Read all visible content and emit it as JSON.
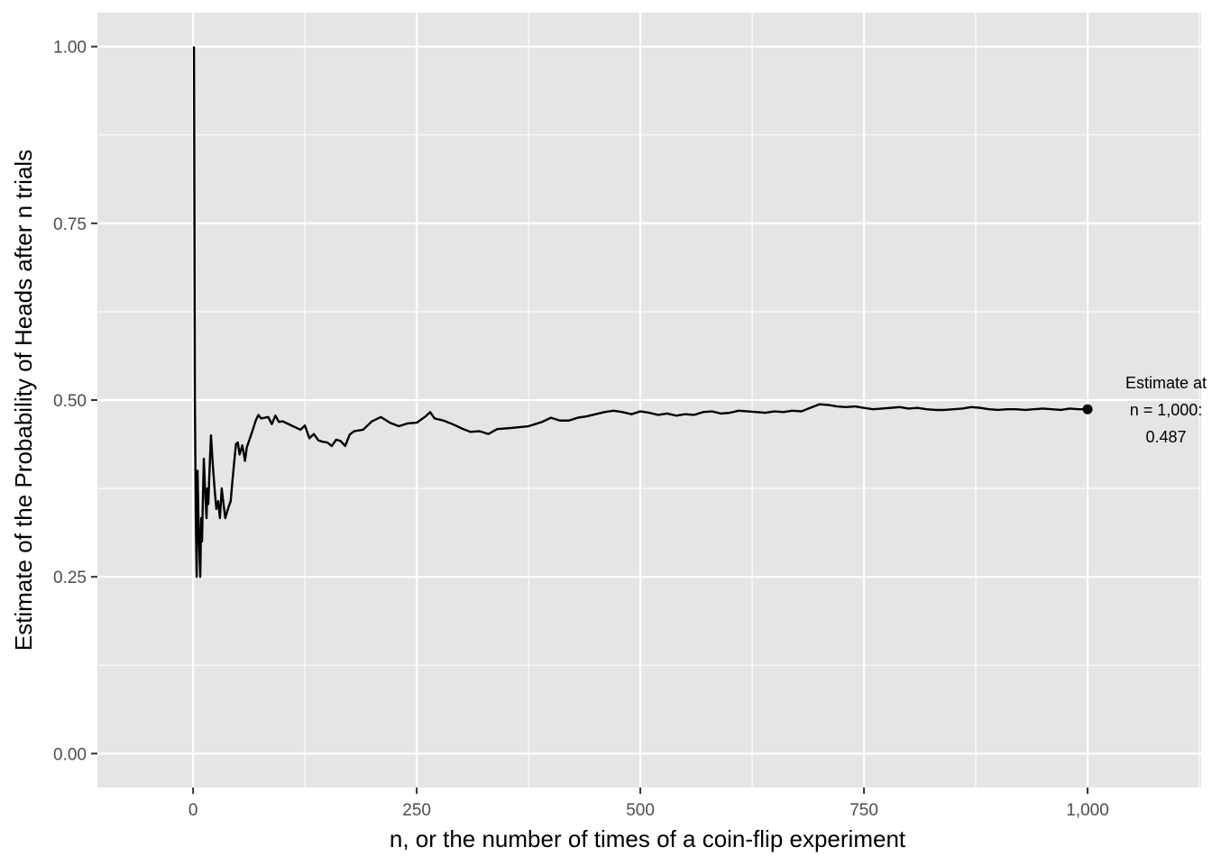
{
  "chart_data": {
    "type": "line",
    "title": "",
    "xlabel": "n, or the number of times of a coin-flip experiment",
    "ylabel": "Estimate of the Probability of Heads after n trials",
    "xlim": [
      -107,
      1127
    ],
    "ylim": [
      -0.048,
      1.048
    ],
    "x_ticks": [
      0,
      250,
      500,
      750,
      1000
    ],
    "x_tick_labels": [
      "0",
      "250",
      "500",
      "750",
      "1,000"
    ],
    "y_ticks": [
      0,
      0.25,
      0.5,
      0.75,
      1.0
    ],
    "y_tick_labels": [
      "0.00",
      "0.25",
      "0.50",
      "0.75",
      "1.00"
    ],
    "grid": true,
    "panel_background": "#e5e5e5",
    "grid_color": "#ffffff",
    "line_color": "#000000",
    "series": [
      {
        "x": [
          1,
          2,
          3,
          4,
          5,
          6,
          7,
          8,
          9,
          10,
          11,
          12,
          13,
          14,
          15,
          16,
          17,
          18,
          19,
          20,
          22,
          24,
          26,
          28,
          30,
          32,
          34,
          36,
          38,
          40,
          42,
          44,
          46,
          48,
          50,
          52,
          55,
          58,
          60,
          63,
          66,
          70,
          73,
          76,
          80,
          84,
          88,
          92,
          96,
          100,
          105,
          110,
          115,
          120,
          125,
          130,
          135,
          140,
          145,
          150,
          155,
          160,
          165,
          170,
          175,
          180,
          190,
          200,
          210,
          220,
          230,
          240,
          250,
          260,
          265,
          270,
          280,
          290,
          300,
          310,
          320,
          330,
          340,
          350,
          360,
          375,
          390,
          400,
          410,
          420,
          430,
          440,
          450,
          460,
          470,
          480,
          490,
          500,
          510,
          520,
          530,
          540,
          550,
          560,
          570,
          580,
          590,
          600,
          610,
          620,
          630,
          640,
          650,
          660,
          670,
          680,
          690,
          700,
          710,
          720,
          730,
          740,
          750,
          760,
          770,
          780,
          790,
          800,
          810,
          820,
          830,
          840,
          850,
          860,
          870,
          880,
          890,
          900,
          910,
          920,
          930,
          940,
          950,
          960,
          970,
          980,
          990,
          1000
        ],
        "values": [
          1.0,
          0.5,
          0.333,
          0.25,
          0.4,
          0.333,
          0.286,
          0.25,
          0.333,
          0.3,
          0.364,
          0.417,
          0.385,
          0.357,
          0.333,
          0.375,
          0.353,
          0.389,
          0.421,
          0.45,
          0.409,
          0.375,
          0.346,
          0.357,
          0.333,
          0.375,
          0.353,
          0.333,
          0.342,
          0.35,
          0.357,
          0.386,
          0.413,
          0.438,
          0.44,
          0.423,
          0.436,
          0.414,
          0.433,
          0.444,
          0.455,
          0.471,
          0.479,
          0.474,
          0.475,
          0.476,
          0.466,
          0.478,
          0.469,
          0.47,
          0.467,
          0.464,
          0.461,
          0.458,
          0.464,
          0.446,
          0.452,
          0.443,
          0.441,
          0.44,
          0.435,
          0.444,
          0.442,
          0.435,
          0.451,
          0.456,
          0.458,
          0.47,
          0.476,
          0.468,
          0.463,
          0.467,
          0.468,
          0.477,
          0.483,
          0.474,
          0.471,
          0.466,
          0.46,
          0.455,
          0.456,
          0.452,
          0.459,
          0.46,
          0.461,
          0.463,
          0.469,
          0.475,
          0.471,
          0.471,
          0.475,
          0.477,
          0.48,
          0.483,
          0.485,
          0.483,
          0.48,
          0.484,
          0.482,
          0.479,
          0.481,
          0.478,
          0.48,
          0.479,
          0.483,
          0.484,
          0.481,
          0.482,
          0.485,
          0.484,
          0.483,
          0.482,
          0.484,
          0.483,
          0.485,
          0.484,
          0.489,
          0.494,
          0.493,
          0.491,
          0.49,
          0.491,
          0.489,
          0.487,
          0.488,
          0.489,
          0.49,
          0.488,
          0.489,
          0.487,
          0.486,
          0.486,
          0.487,
          0.488,
          0.49,
          0.489,
          0.487,
          0.486,
          0.487,
          0.487,
          0.486,
          0.487,
          0.488,
          0.487,
          0.486,
          0.488,
          0.487,
          0.487
        ]
      }
    ],
    "points": [
      {
        "x": 1000,
        "y": 0.487
      }
    ],
    "annotation": {
      "x": 1000,
      "y": 0.487,
      "lines": [
        "Estimate at",
        "n = 1,000:",
        "0.487"
      ]
    }
  }
}
